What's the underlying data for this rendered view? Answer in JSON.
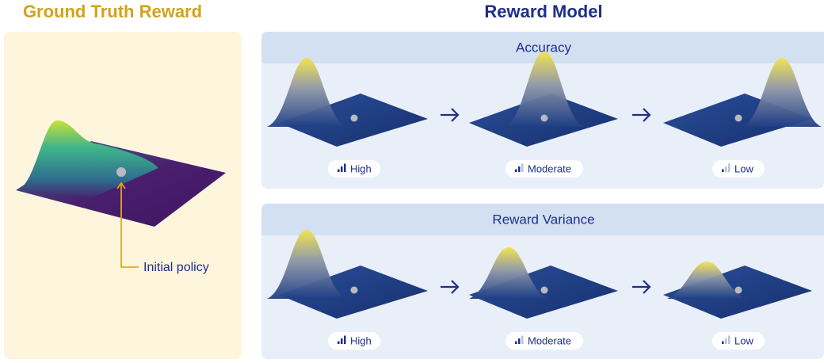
{
  "left": {
    "title": "Ground Truth Reward",
    "annotation": "Initial policy"
  },
  "right": {
    "title": "Reward Model",
    "panels": [
      {
        "title": "Accuracy",
        "items": [
          {
            "label": "High"
          },
          {
            "label": "Moderate"
          },
          {
            "label": "Low"
          }
        ]
      },
      {
        "title": "Reward Variance",
        "items": [
          {
            "label": "High"
          },
          {
            "label": "Moderate"
          },
          {
            "label": "Low"
          }
        ]
      }
    ]
  }
}
